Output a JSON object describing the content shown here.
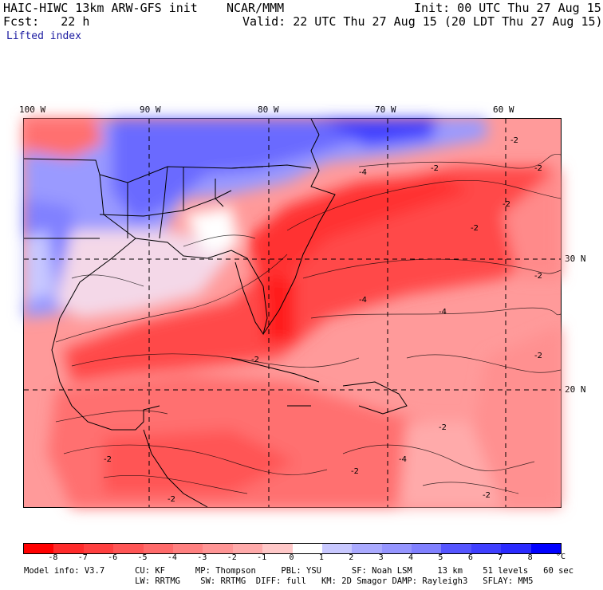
{
  "header": {
    "model_title": "HAIC-HIWC 13km ARW-GFS init    NCAR/MMM",
    "init": "Init: 00 UTC Thu 27 Aug 15",
    "fcst": "Fcst:   22 h",
    "valid": "Valid: 22 UTC Thu 27 Aug 15 (20 LDT Thu 27 Aug 15)",
    "field": "Lifted index"
  },
  "map": {
    "longitude_labels": [
      "100 W",
      "90 W",
      "80 W",
      "70 W",
      "60 W"
    ],
    "latitude_labels": [
      "30 N",
      "20 N"
    ],
    "contour_labels": [
      "-2",
      "-4",
      "-2",
      "-2",
      "-4",
      "-4",
      "-2",
      "-2",
      "-2",
      "-2",
      "-4",
      "-2",
      "-2",
      "-2",
      "-2",
      "-2",
      "-2"
    ]
  },
  "colorbar": {
    "tick_labels": [
      "-8",
      "-7",
      "-6",
      "-5",
      "-4",
      "-3",
      "-2",
      "-1",
      "0",
      "1",
      "2",
      "3",
      "4",
      "5",
      "6",
      "7",
      "8"
    ],
    "unit": "°C",
    "colors": [
      "#ff0000",
      "#ff2a2a",
      "#ff3f3f",
      "#ff5555",
      "#ff6a6a",
      "#ff8080",
      "#ff9595",
      "#ffaaaa",
      "#ffc8c8",
      "#ffffff",
      "#c8c8ff",
      "#aaaaff",
      "#9595ff",
      "#8080ff",
      "#5555ff",
      "#3f3fff",
      "#2a2aff",
      "#0000ff"
    ]
  },
  "footer": {
    "line1": "Model info: V3.7      CU: KF      MP: Thompson     PBL: YSU      SF: Noah LSM     13 km    51 levels   60 sec",
    "line2": "                      LW: RRTMG    SW: RRTMG  DIFF: full   KM: 2D Smagor DAMP: Rayleigh3   SFLAY: MM5"
  }
}
